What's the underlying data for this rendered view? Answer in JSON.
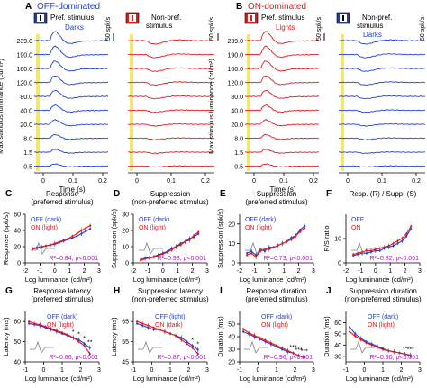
{
  "colors": {
    "off_blue": "#1f3fd6",
    "on_red": "#e0191f",
    "stim_yellow": "#f4e86a",
    "r2_purple": "#9a2ca8",
    "axis": "#000000",
    "grey_inset": "#808080"
  },
  "panel_A": {
    "letter": "A",
    "title": "OFF-dominated",
    "left_header": "Pref. stimulus",
    "left_trace_label": "Darks",
    "right_header_1": "Non-pref.",
    "right_header_2": "stimulus",
    "scale_label": "50 spk/s",
    "ylabel": "Max stimulus luminance (cd/m²)",
    "xlabel": "Time (s)",
    "xticks": [
      "0",
      "0.1",
      "0.2"
    ],
    "luminance_labels": [
      "239.0",
      "190.0",
      "160.0",
      "120.0",
      "80.0",
      "40.0",
      "20.0",
      "8.0",
      "1.5",
      "0.5"
    ],
    "stim_icon": "dark-stimulus-icon",
    "nonpref_icon": "light-stimulus-icon"
  },
  "panel_B": {
    "letter": "B",
    "title": "ON-dominated",
    "left_header": "Pref. stimulus",
    "left_trace_label": "Lights",
    "right_header_1": "Non-pref.",
    "right_header_2": "stimulus",
    "right_trace_label": "Darks",
    "scale_label": "50 spk/s",
    "ylabel": "Max stimulus luminance (cd/m²)",
    "xlabel": "Time (s)",
    "xticks": [
      "0",
      "0.1",
      "0.2"
    ],
    "luminance_labels": [
      "239.0",
      "190.0",
      "160.0",
      "120.0",
      "80.0",
      "40.0",
      "20.0",
      "8.0",
      "1.5",
      "0.5"
    ]
  },
  "small_panels": [
    {
      "letter": "C",
      "title_1": "Response",
      "title_2": "(preferred stimulus)",
      "ylabel": "Response (spk/s)",
      "yticks": [
        "0",
        "20",
        "40",
        "60"
      ],
      "xticks": [
        "-2",
        "-1",
        "0",
        "1",
        "2",
        "3"
      ],
      "legend_off": "OFF (dark)",
      "legend_on": "ON (light)",
      "legend_first": "off",
      "stat": "R²=0.84, p<0.001"
    },
    {
      "letter": "D",
      "title_1": "Suppression",
      "title_2": "(non-preferred stimulus)",
      "ylabel": "Suppression (spk/s)",
      "yticks": [
        "0",
        "10",
        "20",
        "30"
      ],
      "xticks": [
        "-2",
        "-1",
        "0",
        "1",
        "2",
        "3"
      ],
      "legend_off": "OFF (dark)",
      "legend_on": "ON (light)",
      "legend_first": "off",
      "stat": "R²=0.93, p<0.001"
    },
    {
      "letter": "E",
      "title_1": "Suppression",
      "title_2": "(preferred stimulus)",
      "ylabel": "Suppression (spk/s)",
      "yticks": [
        "0",
        "10",
        "20"
      ],
      "xticks": [
        "-2",
        "-1",
        "0",
        "1",
        "2",
        "3"
      ],
      "legend_off": "OFF (dark)",
      "legend_on": "ON (light)",
      "legend_first": "off",
      "stat": "R²=0.73, p<0.001"
    },
    {
      "letter": "F",
      "title_1": "Resp. (R) / Supp. (S)",
      "title_2": "",
      "ylabel": "R/S ratio",
      "yticks": [
        "0",
        "10"
      ],
      "xticks": [
        "-2",
        "-1",
        "0",
        "1",
        "2",
        "3"
      ],
      "legend_off": "OFF",
      "legend_on": "ON",
      "legend_first": "off",
      "stat": "R²=0.82, p<0.001"
    },
    {
      "letter": "G",
      "title_1": "Response latency",
      "title_2": "(preferred stimulus)",
      "ylabel": "Latency (ms)",
      "yticks": [
        "40",
        "50",
        "60"
      ],
      "xticks": [
        "-1",
        "0",
        "1",
        "2",
        "3"
      ],
      "legend_off": "OFF (dark)",
      "legend_on": "ON (light)",
      "legend_first": "off",
      "stat": "R²=0.86, p<0.001",
      "stars": [
        "*",
        "*",
        "*",
        "**"
      ]
    },
    {
      "letter": "H",
      "title_1": "Suppression latency",
      "title_2": "(non-preferred stimulus)",
      "ylabel": "Latency (ms)",
      "yticks": [
        "45",
        "55",
        "65"
      ],
      "xticks": [
        "-1",
        "0",
        "1",
        "2",
        "3"
      ],
      "legend_off": "OFF (light)",
      "legend_on": "ON (dark)",
      "legend_first": "off",
      "stat": "R²=0.87, p<0.001",
      "stars": [
        "*",
        "*"
      ]
    },
    {
      "letter": "I",
      "title_1": "Response duration",
      "title_2": "(preferred stimulus)",
      "ylabel": "Duration (ms)",
      "yticks": [
        "20",
        "30",
        "40",
        "50"
      ],
      "xticks": [
        "-1",
        "0",
        "1",
        "2",
        "3"
      ],
      "legend_off": "OFF (dark)",
      "legend_on": "ON (light)",
      "legend_first": "off",
      "stat": "R²=0.96, p<0.001",
      "stars": [
        "***",
        "***",
        "***"
      ]
    },
    {
      "letter": "J",
      "title_1": "Suppression duration",
      "title_2": "(non-preferred stimulus)",
      "ylabel": "Duration (ms)",
      "yticks": [
        "30",
        "40",
        "50",
        "60"
      ],
      "xticks": [
        "-1",
        "0",
        "1",
        "2",
        "3"
      ],
      "legend_off": "OFF (dark)",
      "legend_on": "ON (light)",
      "legend_first": "off",
      "stat": "R²=0.90, p<0.001",
      "stars": [
        "**",
        "***"
      ]
    }
  ],
  "xlabel_log": "Log luminance (cd/m²)",
  "chart_data": [
    {
      "type": "line",
      "panel": "C",
      "xlabel": "Log luminance (cd/m²)",
      "ylabel": "Response (spk/s)",
      "xlim": [
        -2,
        3
      ],
      "ylim": [
        0,
        60
      ],
      "x": [
        -1.5,
        -1.2,
        -0.9,
        -0.6,
        -0.3,
        0.0,
        0.3,
        0.6,
        0.9,
        1.2,
        1.5,
        1.8,
        2.1,
        2.4
      ],
      "series": [
        {
          "name": "OFF (dark)",
          "values": [
            18,
            19,
            20,
            21,
            22,
            23,
            25,
            27,
            29,
            31,
            33,
            36,
            39,
            42
          ]
        },
        {
          "name": "ON (light)",
          "values": [
            17,
            18,
            19,
            21,
            22,
            24,
            26,
            28,
            30,
            33,
            36,
            40,
            43,
            46
          ]
        }
      ]
    },
    {
      "type": "line",
      "panel": "D",
      "xlabel": "Log luminance (cd/m²)",
      "ylabel": "Suppression (spk/s)",
      "xlim": [
        -2,
        3
      ],
      "ylim": [
        0,
        30
      ],
      "x": [
        -1.5,
        -1.2,
        -0.9,
        -0.6,
        -0.3,
        0.0,
        0.3,
        0.6,
        0.9,
        1.2,
        1.5,
        1.8,
        2.1,
        2.4
      ],
      "series": [
        {
          "name": "OFF (dark)",
          "values": [
            2,
            3,
            3,
            4,
            5,
            6,
            7,
            9,
            10,
            12,
            13,
            15,
            16,
            18
          ]
        },
        {
          "name": "ON (light)",
          "values": [
            1.5,
            2.5,
            3,
            3.5,
            4.5,
            5.5,
            6.5,
            8,
            10,
            11,
            13,
            14,
            17,
            19
          ]
        }
      ]
    },
    {
      "type": "line",
      "panel": "E",
      "xlabel": "Log luminance (cd/m²)",
      "ylabel": "Suppression (spk/s)",
      "xlim": [
        -2,
        3
      ],
      "ylim": [
        0,
        25
      ],
      "x": [
        -1.5,
        -1.2,
        -0.9,
        -0.6,
        -0.3,
        0.0,
        0.3,
        0.6,
        0.9,
        1.2,
        1.5,
        1.8,
        2.1,
        2.4
      ],
      "series": [
        {
          "name": "OFF (dark)",
          "values": [
            5,
            6,
            4,
            7,
            6,
            8,
            8,
            9,
            10,
            11,
            13,
            14,
            17,
            19
          ]
        },
        {
          "name": "ON (light)",
          "values": [
            4,
            5,
            3,
            6,
            7,
            7,
            8,
            9,
            10,
            11,
            12,
            14,
            16,
            18
          ]
        }
      ]
    },
    {
      "type": "line",
      "panel": "F",
      "xlabel": "Log luminance (cd/m²)",
      "ylabel": "R/S ratio",
      "xlim": [
        -2,
        3
      ],
      "ylim": [
        0,
        20
      ],
      "x": [
        -1.5,
        -1.2,
        -0.9,
        -0.6,
        -0.3,
        0.0,
        0.3,
        0.6,
        0.9,
        1.2,
        1.5,
        1.8,
        2.1,
        2.4
      ],
      "series": [
        {
          "name": "OFF",
          "values": [
            3,
            3.5,
            4,
            4,
            4.5,
            5,
            5,
            6,
            6.5,
            7,
            8,
            9,
            11,
            14
          ]
        },
        {
          "name": "ON",
          "values": [
            3.5,
            4,
            4.5,
            5,
            5,
            5.5,
            6,
            6.5,
            7,
            8,
            9,
            10,
            12,
            15
          ]
        }
      ]
    },
    {
      "type": "line",
      "panel": "G",
      "xlabel": "Log luminance (cd/m²)",
      "ylabel": "Latency (ms)",
      "xlim": [
        -1,
        3
      ],
      "ylim": [
        40,
        65
      ],
      "x": [
        -0.8,
        -0.5,
        -0.2,
        0.1,
        0.4,
        0.7,
        1.0,
        1.3,
        1.6,
        1.9,
        2.2,
        2.5
      ],
      "series": [
        {
          "name": "OFF (dark)",
          "values": [
            59,
            58.5,
            58,
            57,
            56,
            55,
            54,
            53,
            52,
            51,
            49,
            47
          ]
        },
        {
          "name": "ON (light)",
          "values": [
            60,
            59,
            58.5,
            57.5,
            56.5,
            55.5,
            54.5,
            53.5,
            52,
            50,
            48,
            44
          ]
        }
      ]
    },
    {
      "type": "line",
      "panel": "H",
      "xlabel": "Log luminance (cd/m²)",
      "ylabel": "Latency (ms)",
      "xlim": [
        -1,
        3
      ],
      "ylim": [
        45,
        70
      ],
      "x": [
        -0.8,
        -0.5,
        -0.2,
        0.1,
        0.4,
        0.7,
        1.0,
        1.3,
        1.6,
        1.9,
        2.2,
        2.5
      ],
      "series": [
        {
          "name": "OFF (light)",
          "values": [
            64,
            63,
            62,
            61,
            61,
            60,
            59,
            58,
            57,
            55,
            53,
            51
          ]
        },
        {
          "name": "ON (dark)",
          "values": [
            65,
            64,
            63,
            62,
            61,
            60,
            59,
            58,
            56,
            54,
            52,
            49
          ]
        }
      ]
    },
    {
      "type": "line",
      "panel": "I",
      "xlabel": "Log luminance (cd/m²)",
      "ylabel": "Duration (ms)",
      "xlim": [
        -1,
        3
      ],
      "ylim": [
        20,
        60
      ],
      "x": [
        -0.8,
        -0.5,
        -0.2,
        0.1,
        0.4,
        0.7,
        1.0,
        1.3,
        1.6,
        1.9,
        2.2,
        2.5
      ],
      "series": [
        {
          "name": "OFF (dark)",
          "values": [
            44,
            42,
            40,
            38,
            36,
            34,
            32,
            30,
            28,
            27,
            25,
            24
          ]
        },
        {
          "name": "ON (light)",
          "values": [
            46,
            43,
            41,
            39,
            37,
            35,
            33,
            31,
            29,
            27,
            25,
            23
          ]
        }
      ]
    },
    {
      "type": "line",
      "panel": "J",
      "xlabel": "Log luminance (cd/m²)",
      "ylabel": "Duration (ms)",
      "xlim": [
        -1,
        3
      ],
      "ylim": [
        25,
        70
      ],
      "x": [
        -0.8,
        -0.5,
        -0.2,
        0.1,
        0.4,
        0.7,
        1.0,
        1.3,
        1.6,
        1.9,
        2.2,
        2.5
      ],
      "series": [
        {
          "name": "OFF (dark)",
          "values": [
            56,
            50,
            46,
            43,
            41,
            39,
            37,
            35,
            34,
            33,
            32,
            31
          ]
        },
        {
          "name": "ON (light)",
          "values": [
            52,
            48,
            45,
            42,
            40,
            38,
            36,
            35,
            34,
            33,
            32,
            30
          ]
        }
      ]
    }
  ]
}
